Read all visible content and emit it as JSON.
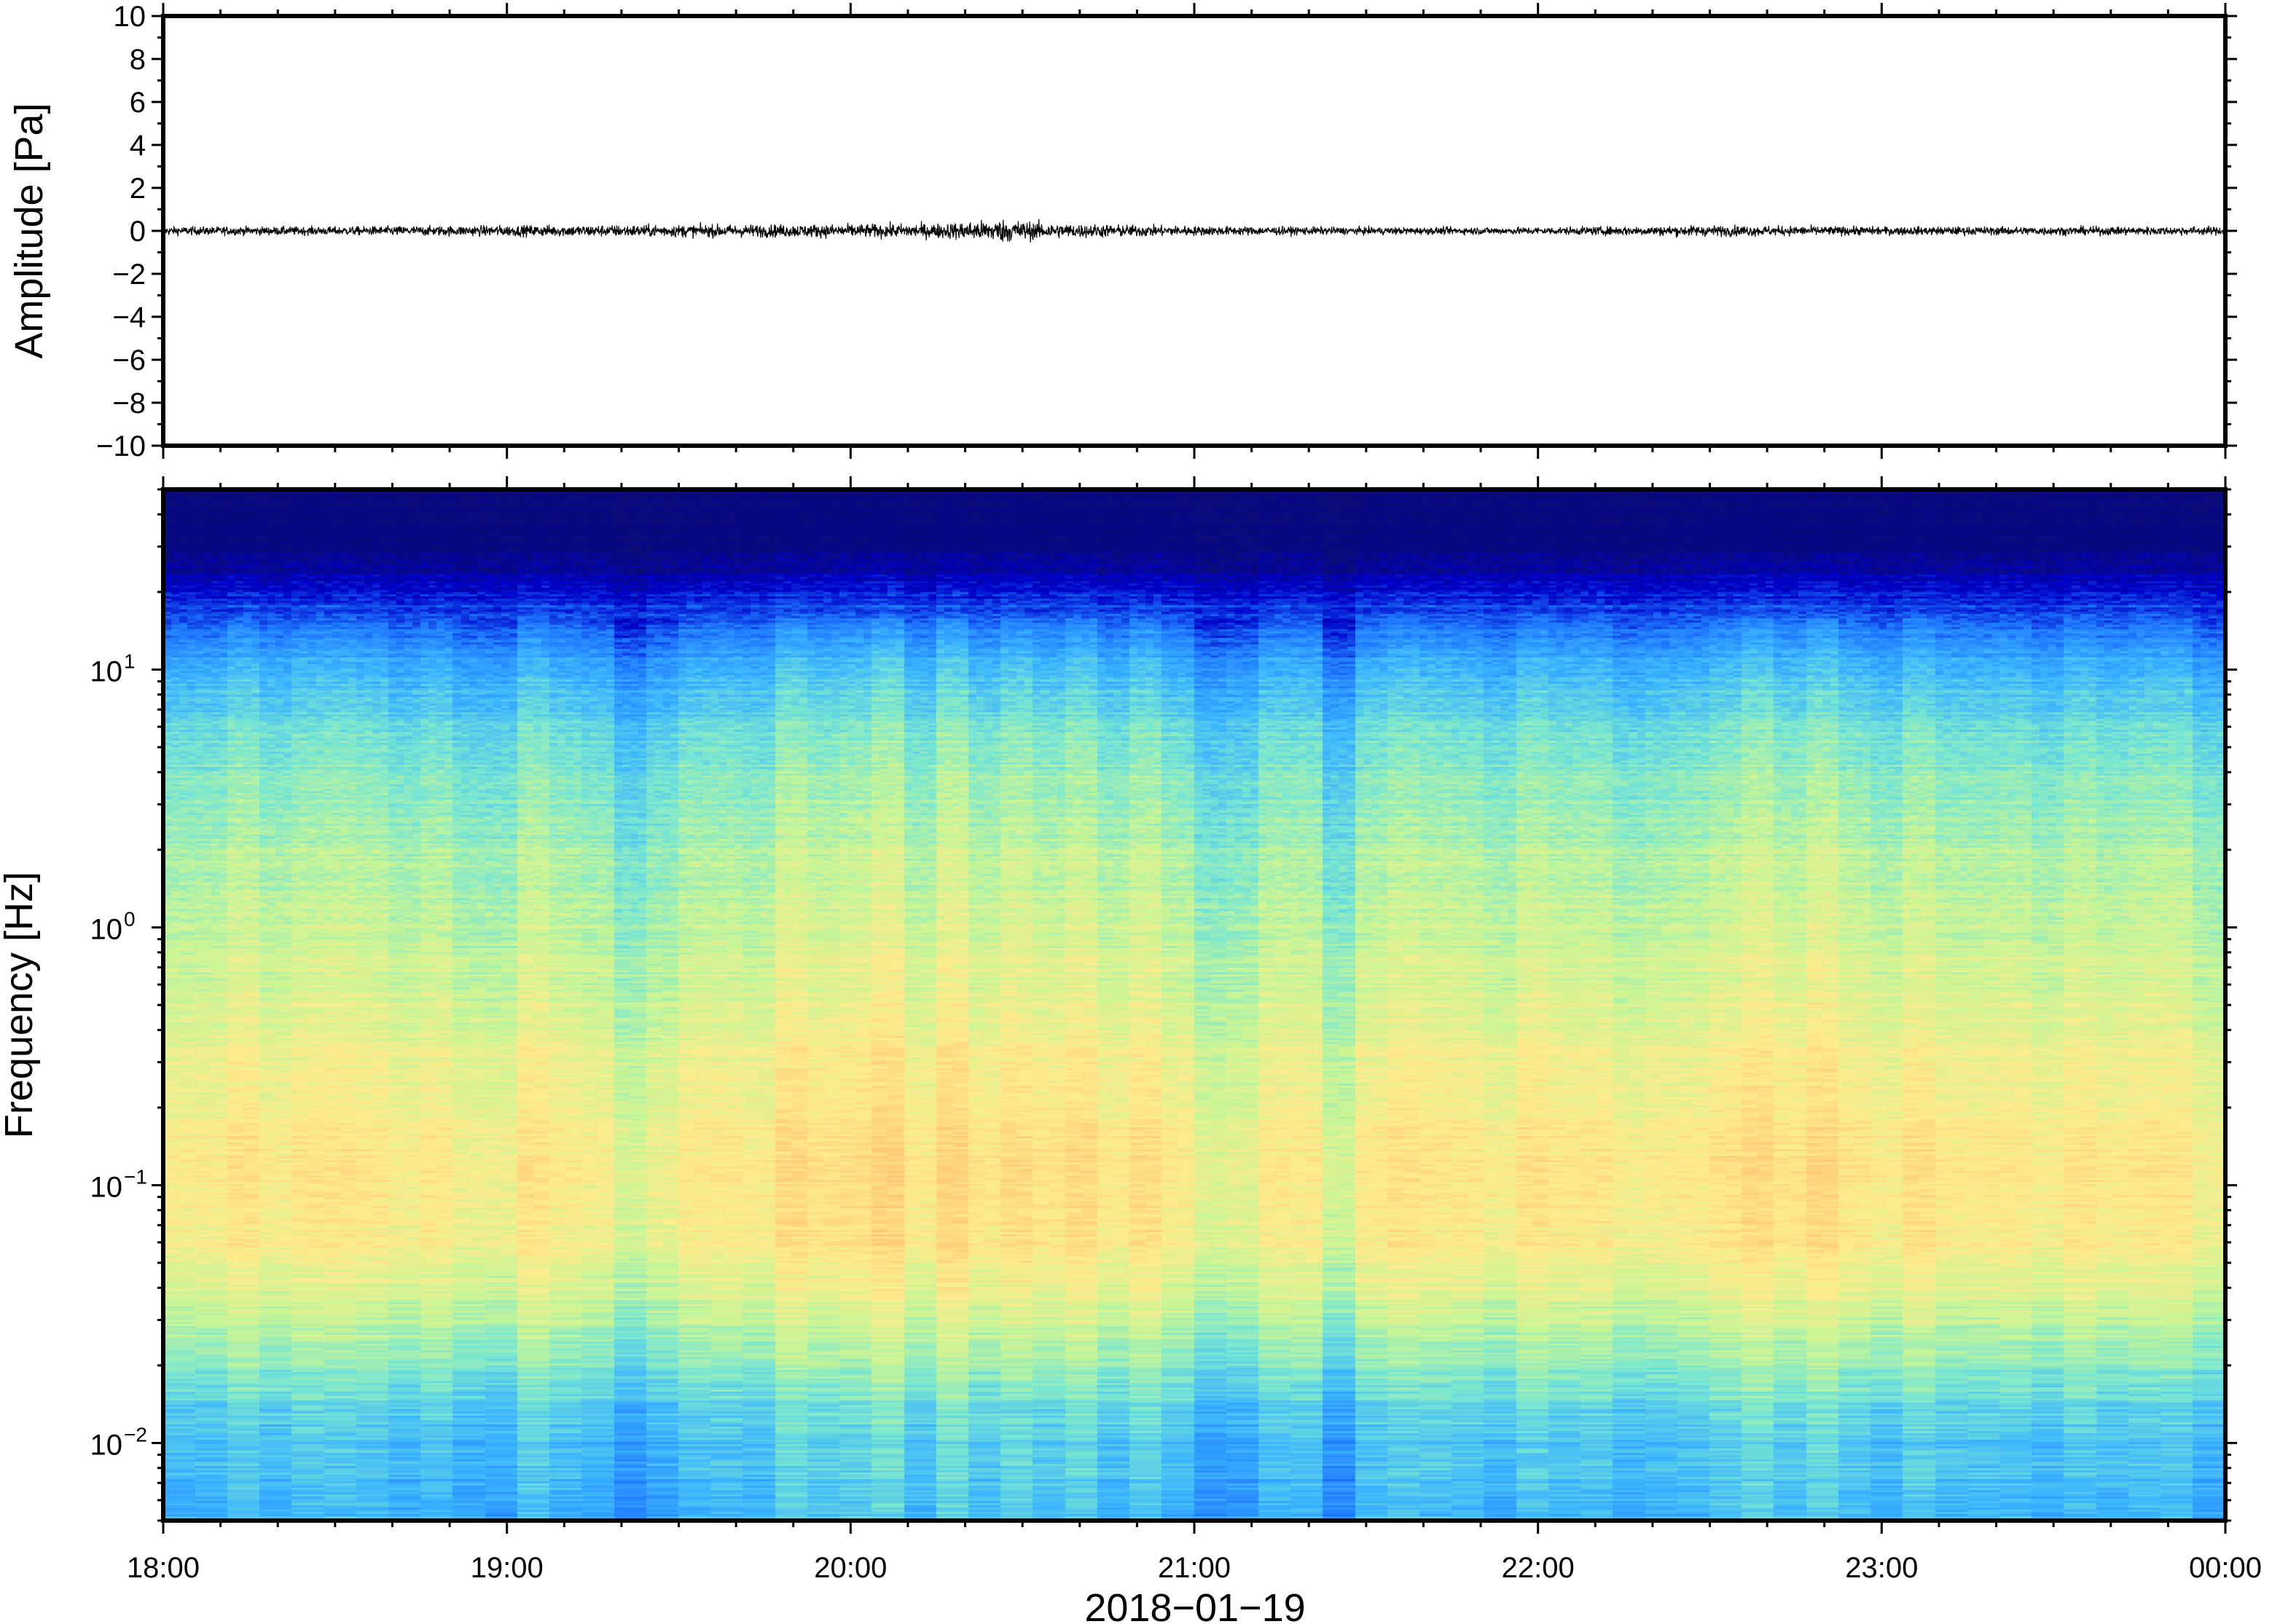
{
  "chart_data": [
    {
      "type": "line",
      "panel": "waveform",
      "ylabel": "Amplitude [Pa]",
      "ylim": [
        -10,
        10
      ],
      "yticks": [
        10,
        8,
        6,
        4,
        2,
        0,
        -2,
        -4,
        -6,
        -8,
        -10
      ],
      "ytick_labels": [
        "10",
        "8",
        "6",
        "4",
        "2",
        "0",
        "−2",
        "−4",
        "−6",
        "−8",
        "−10"
      ],
      "xlim_hours": [
        18,
        24
      ],
      "amplitude_envelope": {
        "hours": [
          18.0,
          18.5,
          19.0,
          19.5,
          20.0,
          20.25,
          20.45,
          20.6,
          21.0,
          21.5,
          22.0,
          22.5,
          23.0,
          23.5,
          24.0
        ],
        "peak_pa": [
          0.35,
          0.35,
          0.45,
          0.5,
          0.55,
          0.6,
          0.95,
          0.6,
          0.4,
          0.3,
          0.3,
          0.45,
          0.35,
          0.35,
          0.35
        ]
      },
      "line_color": "#000000"
    },
    {
      "type": "heatmap",
      "panel": "spectrogram",
      "ylabel": "Frequency [Hz]",
      "yscale": "log",
      "ylim": [
        0.005,
        50
      ],
      "yticks": [
        {
          "value": 10,
          "base": "10",
          "exp": "1"
        },
        {
          "value": 1,
          "base": "10",
          "exp": "0"
        },
        {
          "value": 0.1,
          "base": "10",
          "exp": "−1"
        },
        {
          "value": 0.01,
          "base": "10",
          "exp": "−2"
        }
      ],
      "xlim_hours": [
        18,
        24
      ],
      "colormap": [
        "#0a0a78",
        "#0000c8",
        "#1e78ff",
        "#3cb4ff",
        "#78e6d2",
        "#c8f596",
        "#ffeb8c",
        "#ffc878",
        "#ff9650"
      ],
      "intensity_profile": {
        "freq_hz": [
          50,
          25,
          15,
          10,
          5,
          2,
          1,
          0.4,
          0.15,
          0.06,
          0.03,
          0.018,
          0.01,
          0.005
        ],
        "level": [
          0.0,
          0.05,
          0.25,
          0.38,
          0.5,
          0.58,
          0.62,
          0.68,
          0.76,
          0.74,
          0.62,
          0.5,
          0.4,
          0.38
        ]
      },
      "hot_hours": [
        20.0,
        20.5,
        22.7
      ],
      "quiet_hours": [
        19.4,
        21.1,
        21.4,
        23.95
      ]
    }
  ],
  "xaxis": {
    "tick_labels": [
      "18:00",
      "19:00",
      "20:00",
      "21:00",
      "22:00",
      "23:00",
      "00:00"
    ],
    "tick_hours": [
      18,
      19,
      20,
      21,
      22,
      23,
      24
    ],
    "date_label": "2018−01−19"
  }
}
